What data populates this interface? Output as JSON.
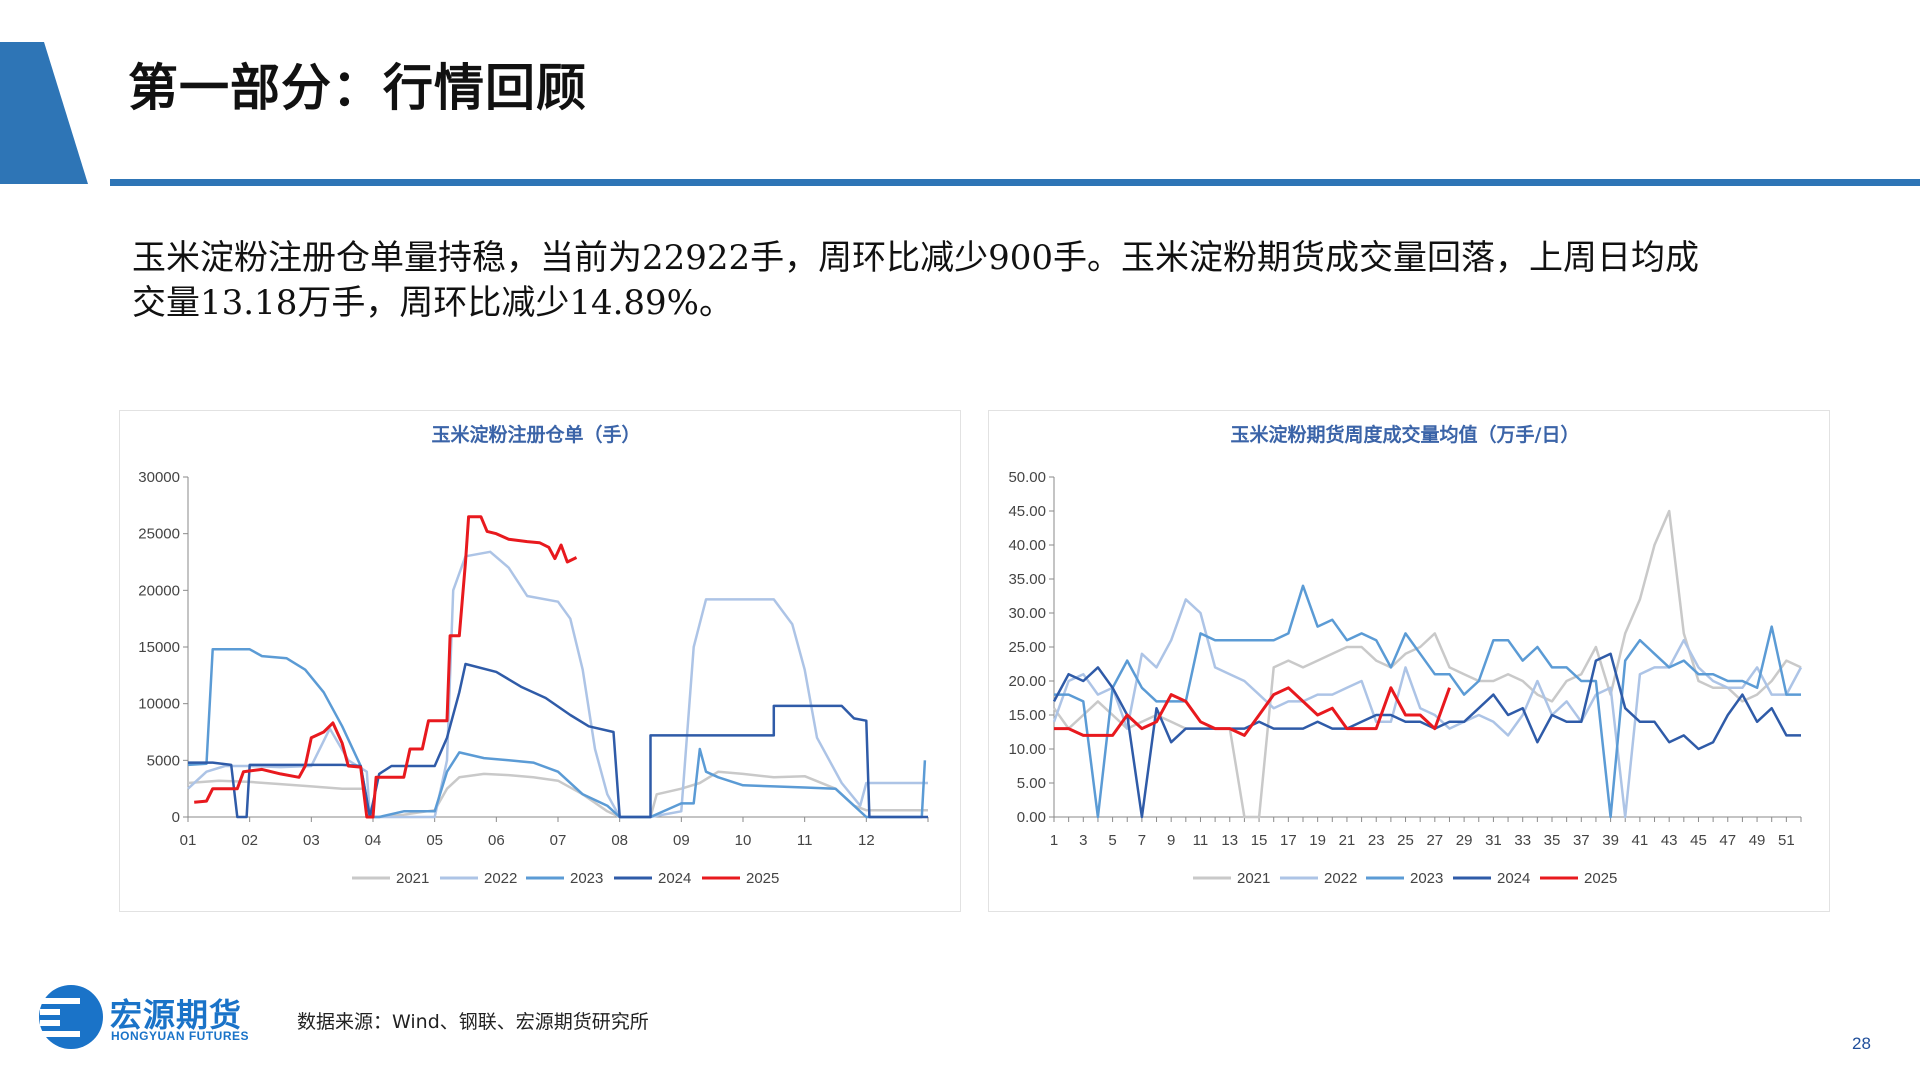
{
  "header": {
    "title": "第一部分：行情回顾",
    "accent_color": "#2e75b6"
  },
  "summary": {
    "line1": "玉米淀粉注册仓单量持稳，当前为22922手，周环比减少900手。玉米淀粉期货成交量回落，上周日均成",
    "line2": "交量13.18万手，周环比减少14.89%。"
  },
  "footer": {
    "logo_cn": "宏源期货",
    "logo_en": "HONGYUAN FUTURES",
    "source": "数据来源：Wind、钢联、宏源期货研究所",
    "page_number": "28"
  },
  "chart_data": [
    {
      "type": "line",
      "title": "玉米淀粉注册仓单（手）",
      "ylim": [
        0,
        30000
      ],
      "yticks": [
        "0",
        "5000",
        "10000",
        "15000",
        "20000",
        "25000",
        "30000"
      ],
      "xlim": [
        1,
        13
      ],
      "xticks": [
        "01",
        "02",
        "03",
        "04",
        "05",
        "06",
        "07",
        "08",
        "09",
        "10",
        "11",
        "12"
      ],
      "legend_position": "bottom",
      "series": [
        {
          "name": "2021",
          "color": "#c9c9c9",
          "points": [
            [
              1.0,
              3000
            ],
            [
              1.5,
              3200
            ],
            [
              2.0,
              3100
            ],
            [
              2.5,
              2900
            ],
            [
              3.0,
              2700
            ],
            [
              3.5,
              2500
            ],
            [
              3.85,
              2500
            ],
            [
              3.95,
              0
            ],
            [
              4.1,
              0
            ],
            [
              4.5,
              200
            ],
            [
              5.0,
              600
            ],
            [
              5.2,
              2500
            ],
            [
              5.4,
              3500
            ],
            [
              5.8,
              3800
            ],
            [
              6.2,
              3700
            ],
            [
              6.6,
              3500
            ],
            [
              7.0,
              3200
            ],
            [
              7.4,
              2000
            ],
            [
              7.8,
              500
            ],
            [
              8.0,
              0
            ],
            [
              8.5,
              0
            ],
            [
              8.6,
              2000
            ],
            [
              9.0,
              2500
            ],
            [
              9.3,
              3000
            ],
            [
              9.6,
              4000
            ],
            [
              10.0,
              3800
            ],
            [
              10.5,
              3500
            ],
            [
              11.0,
              3600
            ],
            [
              11.5,
              2500
            ],
            [
              11.8,
              1000
            ],
            [
              12.0,
              600
            ],
            [
              12.5,
              600
            ],
            [
              13.0,
              600
            ]
          ]
        },
        {
          "name": "2022",
          "color": "#adc4e6",
          "points": [
            [
              1.0,
              2500
            ],
            [
              1.3,
              4000
            ],
            [
              1.6,
              4500
            ],
            [
              2.0,
              4500
            ],
            [
              2.5,
              4400
            ],
            [
              3.0,
              4500
            ],
            [
              3.3,
              7800
            ],
            [
              3.6,
              5000
            ],
            [
              3.9,
              4000
            ],
            [
              3.95,
              0
            ],
            [
              4.1,
              0
            ],
            [
              4.5,
              0
            ],
            [
              5.0,
              0
            ],
            [
              5.2,
              5000
            ],
            [
              5.3,
              20000
            ],
            [
              5.5,
              23000
            ],
            [
              5.9,
              23400
            ],
            [
              6.2,
              22000
            ],
            [
              6.5,
              19500
            ],
            [
              7.0,
              19000
            ],
            [
              7.2,
              17500
            ],
            [
              7.4,
              13000
            ],
            [
              7.6,
              6000
            ],
            [
              7.8,
              2000
            ],
            [
              8.0,
              0
            ],
            [
              8.5,
              0
            ],
            [
              9.0,
              500
            ],
            [
              9.2,
              15000
            ],
            [
              9.4,
              19200
            ],
            [
              10.0,
              19200
            ],
            [
              10.5,
              19200
            ],
            [
              10.8,
              17000
            ],
            [
              11.0,
              13000
            ],
            [
              11.2,
              7000
            ],
            [
              11.6,
              3000
            ],
            [
              11.9,
              1000
            ],
            [
              12.0,
              3000
            ],
            [
              12.5,
              3000
            ],
            [
              13.0,
              3000
            ]
          ]
        },
        {
          "name": "2023",
          "color": "#5b9bd5",
          "points": [
            [
              1.0,
              4600
            ],
            [
              1.3,
              4700
            ],
            [
              1.4,
              14800
            ],
            [
              2.0,
              14800
            ],
            [
              2.2,
              14200
            ],
            [
              2.6,
              14000
            ],
            [
              2.9,
              13000
            ],
            [
              3.2,
              11000
            ],
            [
              3.5,
              8000
            ],
            [
              3.8,
              4500
            ],
            [
              3.95,
              0
            ],
            [
              4.1,
              0
            ],
            [
              4.5,
              500
            ],
            [
              5.0,
              500
            ],
            [
              5.2,
              4000
            ],
            [
              5.4,
              5700
            ],
            [
              5.8,
              5200
            ],
            [
              6.2,
              5000
            ],
            [
              6.6,
              4800
            ],
            [
              7.0,
              4000
            ],
            [
              7.4,
              2000
            ],
            [
              7.8,
              1000
            ],
            [
              8.0,
              0
            ],
            [
              8.5,
              0
            ],
            [
              9.0,
              1200
            ],
            [
              9.2,
              1200
            ],
            [
              9.3,
              6000
            ],
            [
              9.4,
              4000
            ],
            [
              9.6,
              3500
            ],
            [
              10.0,
              2800
            ],
            [
              10.5,
              2700
            ],
            [
              11.0,
              2600
            ],
            [
              11.5,
              2500
            ],
            [
              11.8,
              1000
            ],
            [
              12.0,
              0
            ],
            [
              12.5,
              0
            ],
            [
              12.9,
              0
            ],
            [
              12.95,
              5000
            ]
          ]
        },
        {
          "name": "2024",
          "color": "#2f5ba8",
          "points": [
            [
              1.0,
              4800
            ],
            [
              1.2,
              4800
            ],
            [
              1.4,
              4800
            ],
            [
              1.7,
              4600
            ],
            [
              1.8,
              0
            ],
            [
              1.95,
              0
            ],
            [
              2.0,
              4600
            ],
            [
              2.5,
              4600
            ],
            [
              3.0,
              4600
            ],
            [
              3.5,
              4600
            ],
            [
              3.8,
              4500
            ],
            [
              3.95,
              0
            ],
            [
              4.1,
              3800
            ],
            [
              4.3,
              4500
            ],
            [
              5.0,
              4500
            ],
            [
              5.2,
              7000
            ],
            [
              5.4,
              11000
            ],
            [
              5.5,
              13500
            ],
            [
              6.0,
              12800
            ],
            [
              6.4,
              11500
            ],
            [
              6.8,
              10500
            ],
            [
              7.2,
              9000
            ],
            [
              7.5,
              8000
            ],
            [
              7.9,
              7500
            ],
            [
              8.0,
              0
            ],
            [
              8.5,
              0
            ],
            [
              8.5,
              7200
            ],
            [
              9.0,
              7200
            ],
            [
              9.6,
              7200
            ],
            [
              10.0,
              7200
            ],
            [
              10.5,
              7200
            ],
            [
              10.5,
              9800
            ],
            [
              11.0,
              9800
            ],
            [
              11.6,
              9800
            ],
            [
              11.8,
              8700
            ],
            [
              12.0,
              8500
            ],
            [
              12.05,
              0
            ],
            [
              13.0,
              0
            ]
          ]
        },
        {
          "name": "2025",
          "color": "#e8191e",
          "points": [
            [
              1.1,
              1300
            ],
            [
              1.3,
              1400
            ],
            [
              1.4,
              2500
            ],
            [
              1.8,
              2500
            ],
            [
              1.9,
              4000
            ],
            [
              2.2,
              4200
            ],
            [
              2.5,
              3800
            ],
            [
              2.8,
              3500
            ],
            [
              2.9,
              4500
            ],
            [
              3.0,
              7000
            ],
            [
              3.2,
              7500
            ],
            [
              3.35,
              8300
            ],
            [
              3.5,
              6500
            ],
            [
              3.6,
              4500
            ],
            [
              3.8,
              4400
            ],
            [
              3.9,
              0
            ],
            [
              4.0,
              0
            ],
            [
              4.05,
              3500
            ],
            [
              4.5,
              3500
            ],
            [
              4.6,
              6000
            ],
            [
              4.8,
              6000
            ],
            [
              4.9,
              8500
            ],
            [
              5.2,
              8500
            ],
            [
              5.25,
              16000
            ],
            [
              5.4,
              16000
            ],
            [
              5.5,
              22500
            ],
            [
              5.55,
              26500
            ],
            [
              5.75,
              26500
            ],
            [
              5.85,
              25200
            ],
            [
              6.0,
              25000
            ],
            [
              6.2,
              24500
            ],
            [
              6.5,
              24300
            ],
            [
              6.7,
              24200
            ],
            [
              6.85,
              23800
            ],
            [
              6.95,
              22800
            ],
            [
              7.05,
              24000
            ],
            [
              7.15,
              22500
            ],
            [
              7.3,
              22900
            ]
          ]
        }
      ]
    },
    {
      "type": "line",
      "title": "玉米淀粉期货周度成交量均值（万手/日）",
      "ylim": [
        0,
        50
      ],
      "yticks": [
        "0.00",
        "5.00",
        "10.00",
        "15.00",
        "20.00",
        "25.00",
        "30.00",
        "35.00",
        "40.00",
        "45.00",
        "50.00"
      ],
      "xlim": [
        1,
        52
      ],
      "xticks": [
        "1",
        "3",
        "5",
        "7",
        "9",
        "11",
        "13",
        "15",
        "17",
        "19",
        "21",
        "23",
        "25",
        "27",
        "29",
        "31",
        "33",
        "35",
        "37",
        "39",
        "41",
        "43",
        "45",
        "47",
        "49",
        "51"
      ],
      "legend_position": "bottom",
      "series": [
        {
          "name": "2021",
          "color": "#c9c9c9",
          "values": [
            16,
            13,
            15,
            17,
            15,
            13,
            14,
            15,
            14,
            13,
            13,
            13,
            13,
            0,
            0,
            22,
            23,
            22,
            23,
            24,
            25,
            25,
            23,
            22,
            24,
            25,
            27,
            22,
            21,
            20,
            20,
            21,
            20,
            18,
            17,
            20,
            21,
            25,
            18,
            27,
            32,
            40,
            45,
            27,
            20,
            19,
            19,
            17,
            18,
            20,
            23,
            22
          ]
        },
        {
          "name": "2022",
          "color": "#adc4e6",
          "values": [
            14,
            20,
            21,
            18,
            19,
            13,
            24,
            22,
            26,
            32,
            30,
            22,
            21,
            20,
            18,
            16,
            17,
            17,
            18,
            18,
            19,
            20,
            14,
            14,
            22,
            16,
            15,
            13,
            14,
            15,
            14,
            12,
            15,
            20,
            15,
            17,
            14,
            18,
            19,
            0,
            21,
            22,
            22,
            26,
            22,
            20,
            19,
            19,
            22,
            18,
            18,
            22
          ]
        },
        {
          "name": "2023",
          "color": "#5b9bd5",
          "values": [
            18,
            18,
            17,
            0,
            19,
            23,
            19,
            17,
            17,
            17,
            27,
            26,
            26,
            26,
            26,
            26,
            27,
            34,
            28,
            29,
            26,
            27,
            26,
            22,
            27,
            24,
            21,
            21,
            18,
            20,
            26,
            26,
            23,
            25,
            22,
            22,
            20,
            20,
            0,
            23,
            26,
            24,
            22,
            23,
            21,
            21,
            20,
            20,
            19,
            28,
            18,
            18
          ]
        },
        {
          "name": "2024",
          "color": "#2f5ba8",
          "values": [
            17,
            21,
            20,
            22,
            19,
            15,
            0,
            16,
            11,
            13,
            13,
            13,
            13,
            13,
            14,
            13,
            13,
            13,
            14,
            13,
            13,
            14,
            15,
            15,
            14,
            14,
            13,
            14,
            14,
            16,
            18,
            15,
            16,
            11,
            15,
            14,
            14,
            23,
            24,
            16,
            14,
            14,
            11,
            12,
            10,
            11,
            15,
            18,
            14,
            16,
            12,
            12
          ]
        },
        {
          "name": "2025",
          "color": "#e8191e",
          "values": [
            13,
            13,
            12,
            12,
            12,
            15,
            13,
            14,
            18,
            17,
            14,
            13,
            13,
            12,
            15,
            18,
            19,
            17,
            15,
            16,
            13,
            13,
            13,
            19,
            15,
            15,
            13,
            19
          ]
        }
      ]
    }
  ]
}
